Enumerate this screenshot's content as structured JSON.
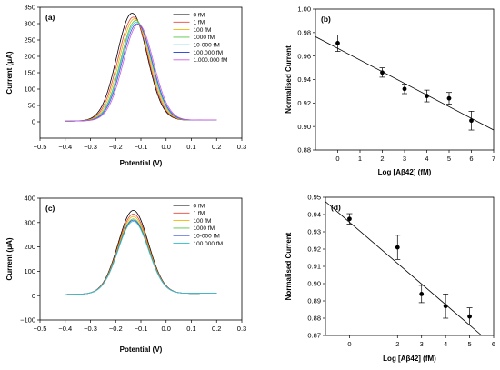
{
  "chart_data": [
    {
      "id": "a",
      "type": "line",
      "panel_label": "(a)",
      "xlabel": "Potential (V)",
      "ylabel": "Current (μA)",
      "xlim": [
        -0.5,
        0.3
      ],
      "ylim": [
        -50,
        350
      ],
      "xticks": [
        "−0.5",
        "−0.4",
        "−0.3",
        "−0.2",
        "−0.1",
        "0.0",
        "0.1",
        "0.2",
        "0.3"
      ],
      "yticks": [
        "0",
        "50",
        "100",
        "150",
        "200",
        "250",
        "300",
        "350"
      ],
      "legend_position": "top-right",
      "grid": false,
      "series": [
        {
          "name": "0 fM",
          "color": "#000000",
          "peak_x": -0.135,
          "peak_y": 332
        },
        {
          "name": "1 fM",
          "color": "#e8453c",
          "peak_x": -0.13,
          "peak_y": 320
        },
        {
          "name": "100 fM",
          "color": "#f0b400",
          "peak_x": -0.125,
          "peak_y": 315
        },
        {
          "name": "1000 fM",
          "color": "#55c240",
          "peak_x": -0.12,
          "peak_y": 310
        },
        {
          "name": "10-000 fM",
          "color": "#40c8d8",
          "peak_x": -0.118,
          "peak_y": 305
        },
        {
          "name": "100.000 fM",
          "color": "#3a4fd8",
          "peak_x": -0.115,
          "peak_y": 300
        },
        {
          "name": "1.000.000 fM",
          "color": "#d05ae0",
          "peak_x": -0.11,
          "peak_y": 298
        }
      ],
      "baseline": {
        "x_start": -0.4,
        "x_end": 0.2,
        "y_start": 2,
        "y_end": 6
      }
    },
    {
      "id": "b",
      "type": "scatter",
      "panel_label": "(b)",
      "xlabel": "Log [Aβ42] (fM)",
      "ylabel": "Normalised Current",
      "xlim": [
        -1,
        7
      ],
      "ylim": [
        0.88,
        1.0
      ],
      "xticks": [
        "0",
        "1",
        "2",
        "3",
        "4",
        "5",
        "6",
        "7"
      ],
      "yticks": [
        "0.88",
        "0.90",
        "0.92",
        "0.94",
        "0.96",
        "0.98",
        "1.00"
      ],
      "grid": false,
      "x": [
        0,
        2,
        3,
        4,
        5,
        6
      ],
      "y": [
        0.971,
        0.946,
        0.932,
        0.926,
        0.924,
        0.905
      ],
      "yerr": [
        0.007,
        0.004,
        0.004,
        0.005,
        0.005,
        0.008
      ],
      "fit": {
        "x": [
          -1,
          7
        ],
        "y": [
          0.9765,
          0.897
        ]
      }
    },
    {
      "id": "c",
      "type": "line",
      "panel_label": "(c)",
      "xlabel": "Potential (V)",
      "ylabel": "Current (μA)",
      "xlim": [
        -0.5,
        0.3
      ],
      "ylim": [
        -100,
        400
      ],
      "xticks": [
        "−0.5",
        "−0.4",
        "−0.3",
        "−0.2",
        "−0.1",
        "0.0",
        "0.1",
        "0.2",
        "0.3"
      ],
      "yticks": [
        "−100",
        "0",
        "100",
        "200",
        "300",
        "400"
      ],
      "legend_position": "top-right",
      "grid": false,
      "series": [
        {
          "name": "0 fM",
          "color": "#000000",
          "peak_x": -0.13,
          "peak_y": 350
        },
        {
          "name": "1 fM",
          "color": "#e8453c",
          "peak_x": -0.13,
          "peak_y": 335
        },
        {
          "name": "100 fM",
          "color": "#f0b400",
          "peak_x": -0.13,
          "peak_y": 325
        },
        {
          "name": "1000 fM",
          "color": "#55c240",
          "peak_x": -0.13,
          "peak_y": 315
        },
        {
          "name": "10-000 fM",
          "color": "#3a4fd8",
          "peak_x": -0.13,
          "peak_y": 310
        },
        {
          "name": "100.000 fM",
          "color": "#40c8d8",
          "peak_x": -0.13,
          "peak_y": 305
        }
      ],
      "baseline": {
        "x_start": -0.4,
        "x_end": 0.2,
        "y_start": 5,
        "y_end": 10
      }
    },
    {
      "id": "d",
      "type": "scatter",
      "panel_label": "(d)",
      "xlabel": "Log [Aβ42] (fM)",
      "ylabel": "Normalised Current",
      "xlim": [
        -1,
        6
      ],
      "ylim": [
        0.87,
        0.95
      ],
      "xticks": [
        "0",
        "2",
        "3",
        "4",
        "5",
        "6"
      ],
      "xtick_values": [
        0,
        2,
        3,
        4,
        5,
        6
      ],
      "yticks": [
        "0.87",
        "0.88",
        "0.89",
        "0.90",
        "0.91",
        "0.92",
        "0.93",
        "0.94",
        "0.95"
      ],
      "grid": false,
      "x": [
        0,
        2,
        3,
        4,
        5
      ],
      "y": [
        0.9375,
        0.921,
        0.894,
        0.887,
        0.881
      ],
      "yerr": [
        0.003,
        0.007,
        0.005,
        0.007,
        0.005
      ],
      "fit": {
        "x": [
          -1,
          5.5
        ],
        "y": [
          0.9475,
          0.87
        ]
      }
    }
  ]
}
